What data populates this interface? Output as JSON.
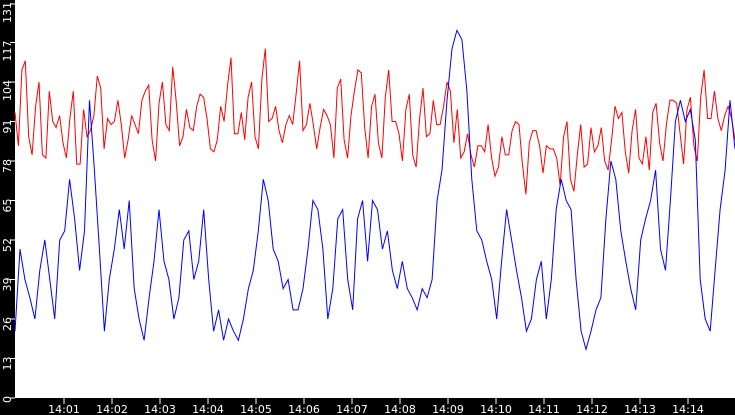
{
  "chart_data": {
    "type": "line",
    "title": "",
    "xlabel": "",
    "ylabel": "",
    "ylim": [
      0,
      131
    ],
    "grid": false,
    "legend": null,
    "background": "#ffffff",
    "axis_background": "#000000",
    "y_ticks": [
      0,
      13,
      26,
      39,
      52,
      65,
      78,
      91,
      104,
      117,
      131
    ],
    "x_ticks": [
      "14:01",
      "14:02",
      "14:03",
      "14:04",
      "14:05",
      "14:06",
      "14:07",
      "14:08",
      "14:09",
      "14:10",
      "14:11",
      "14:12",
      "14:13",
      "14:14"
    ],
    "x_range_minutes": [
      13.02,
      28.0
    ],
    "series": [
      {
        "name": "red-series",
        "color": "#ff0000",
        "values": [
          94,
          108,
          86,
          96,
          80,
          101,
          89,
          84,
          92,
          77,
          95,
          88,
          106,
          82,
          90,
          98,
          79,
          93,
          87,
          101,
          85,
          97,
          90,
          109,
          83,
          95,
          88,
          100,
          92,
          81,
          96,
          103,
          87,
          94,
          99,
          86,
          105,
          91,
          96,
          84,
          93,
          100,
          88,
          97,
          82,
          95,
          90,
          102,
          85,
          93,
          108,
          89,
          96,
          84,
          99,
          91,
          87,
          95,
          80,
          92,
          86,
          98,
          90,
          104,
          84,
          79,
          87,
          76,
          83,
          90,
          73,
          86,
          80,
          91,
          77,
          84,
          88,
          74,
          82,
          79,
          86,
          72,
          80,
          76,
          89,
          83,
          78,
          85,
          92,
          81,
          88,
          79,
          86,
          94,
          84,
          90,
          98,
          87,
          95,
          83,
          99,
          92,
          101,
          88,
          96,
          85
        ]
      },
      {
        "name": "blue-series",
        "color": "#0000ff",
        "values": [
          22,
          49,
          39,
          33,
          26,
          42,
          52,
          39,
          26,
          52,
          55,
          72,
          59,
          42,
          55,
          98,
          75,
          49,
          22,
          39,
          49,
          62,
          49,
          65,
          36,
          26,
          19,
          33,
          45,
          62,
          45,
          39,
          26,
          33,
          52,
          55,
          39,
          45,
          62,
          39,
          22,
          29,
          19,
          26,
          22,
          19,
          26,
          36,
          42,
          55,
          72,
          65,
          49,
          45,
          36,
          39,
          29,
          29,
          36,
          49,
          65,
          62,
          49,
          26,
          36,
          59,
          62,
          39,
          29,
          59,
          65,
          45,
          65,
          62,
          49,
          55,
          42,
          36,
          45,
          36,
          33,
          29,
          36,
          33,
          39,
          65,
          75,
          98,
          115,
          121,
          118,
          101,
          72,
          55,
          52,
          45,
          39,
          26,
          45,
          62,
          52,
          42,
          33,
          22,
          26,
          39,
          45,
          26,
          39,
          62,
          72,
          65,
          62,
          39,
          22,
          16,
          22,
          29,
          33,
          59,
          78,
          72,
          55,
          45,
          36,
          29,
          52,
          59,
          65,
          75,
          49,
          42,
          65,
          91,
          98,
          91,
          95,
          85,
          39,
          26,
          22,
          42,
          62,
          75,
          98,
          82
        ]
      }
    ]
  },
  "y_axis": {
    "labels": [
      "0",
      "13",
      "26",
      "39",
      "52",
      "65",
      "78",
      "91",
      "104",
      "117",
      "131"
    ]
  },
  "x_axis": {
    "labels": [
      "14:01",
      "14:02",
      "14:03",
      "14:04",
      "14:05",
      "14:06",
      "14:07",
      "14:08",
      "14:09",
      "14:10",
      "14:11",
      "14:12",
      "14:13",
      "14:14"
    ]
  }
}
